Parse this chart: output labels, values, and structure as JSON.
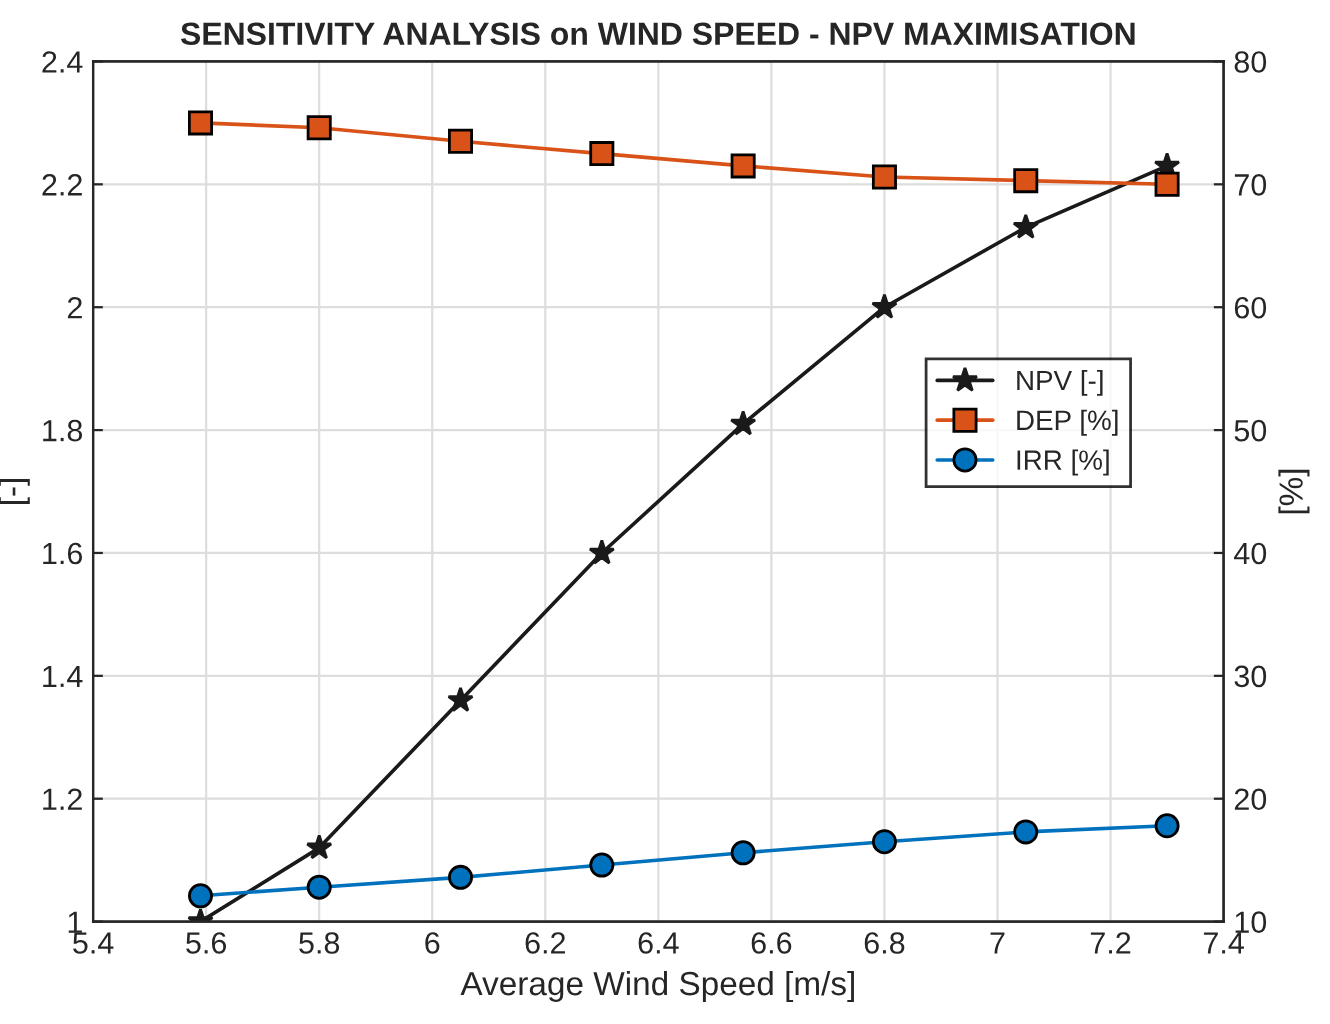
{
  "chart_data": {
    "type": "line",
    "title": "SENSITIVITY ANALYSIS on WIND SPEED - NPV MAXIMISATION",
    "xlabel": "Average Wind Speed [m/s]",
    "ylabel": "[-]",
    "y2label": "[%]",
    "x": [
      5.59,
      5.8,
      6.05,
      6.3,
      6.55,
      6.8,
      7.05,
      7.3
    ],
    "series": [
      {
        "name": "NPV [-]",
        "color": "#1a1a1a",
        "marker": "star",
        "values": [
          1.0,
          1.12,
          1.36,
          1.6,
          1.81,
          2.0,
          2.13,
          2.23
        ]
      },
      {
        "name": "DEP [%]",
        "color": "#d95319",
        "marker": "square",
        "axis": "y2",
        "values": [
          75.0,
          74.6,
          73.5,
          72.5,
          71.5,
          70.6,
          70.3,
          70.0
        ]
      },
      {
        "name": "IRR [%]",
        "color": "#0072bd",
        "marker": "circle",
        "axis": "y2",
        "values": [
          12.1,
          12.8,
          13.6,
          14.6,
          15.6,
          16.5,
          17.3,
          17.8
        ]
      }
    ],
    "xlim": [
      5.4,
      7.4
    ],
    "xticks": [
      5.4,
      5.6,
      5.8,
      6,
      6.2,
      6.4,
      6.6,
      6.8,
      7,
      7.2,
      7.4
    ],
    "ylim": [
      1,
      2.4
    ],
    "yticks": [
      1,
      1.2,
      1.4,
      1.6,
      1.8,
      2,
      2.2,
      2.4
    ],
    "y2lim": [
      10,
      80
    ],
    "y2ticks": [
      10,
      20,
      30,
      40,
      50,
      60,
      70,
      80
    ],
    "grid": true,
    "legend": "right",
    "line_style": "solid"
  }
}
